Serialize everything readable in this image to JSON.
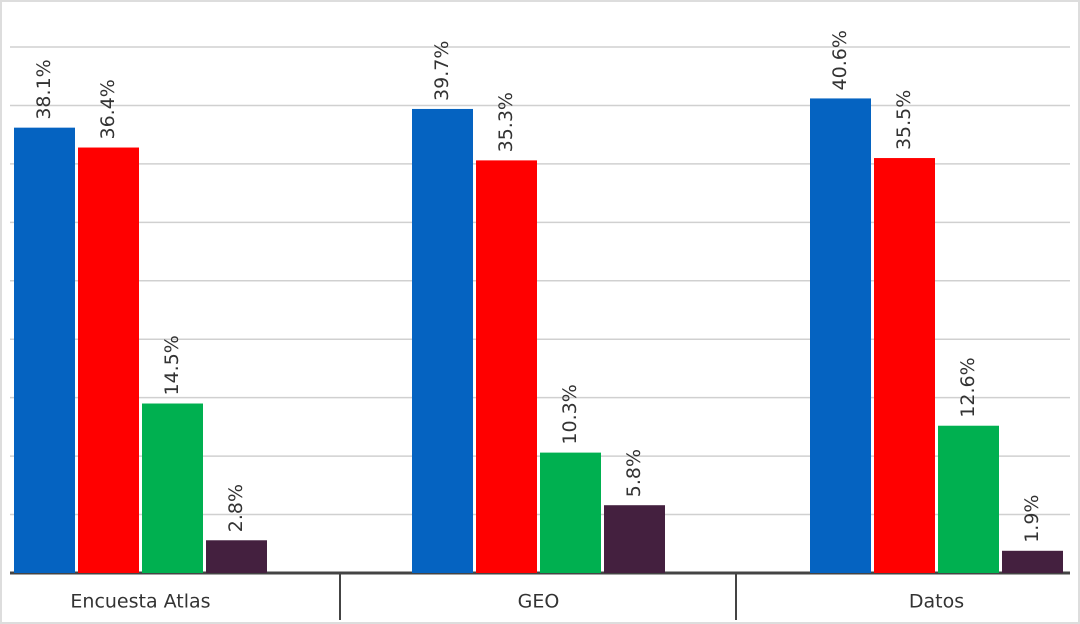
{
  "chart_data": {
    "type": "bar",
    "categories": [
      "Encuesta Atlas",
      "GEO",
      "Datos"
    ],
    "series": [
      {
        "color": "#0563c1",
        "values": [
          38.1,
          39.7,
          40.6
        ],
        "value_labels": [
          "38.1%",
          "39.7%",
          "40.6%"
        ]
      },
      {
        "color": "#ff0000",
        "values": [
          36.4,
          35.3,
          35.5
        ],
        "value_labels": [
          "36.4%",
          "35.3%",
          "35.5%"
        ]
      },
      {
        "color": "#00b050",
        "values": [
          14.5,
          10.3,
          12.6
        ],
        "value_labels": [
          "14.5%",
          "10.3%",
          "12.6%"
        ]
      },
      {
        "color": "#44203f",
        "values": [
          2.8,
          5.8,
          1.9
        ],
        "value_labels": [
          "2.8%",
          "5.8%",
          "1.9%"
        ]
      }
    ],
    "ylim": [
      0,
      45
    ],
    "yticks": [
      5,
      10,
      15,
      20,
      25,
      30,
      35,
      40,
      45
    ],
    "grid": true
  }
}
